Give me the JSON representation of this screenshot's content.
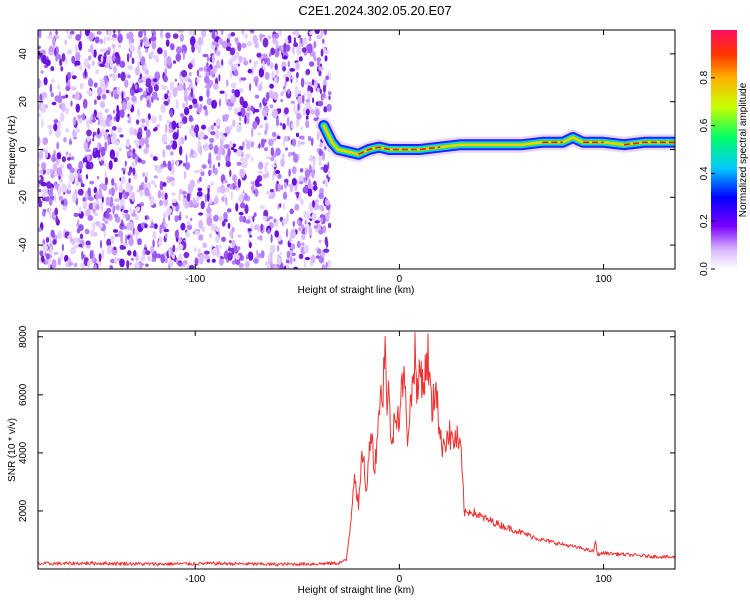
{
  "page_title": "C2E1.2024.302.05.20.E07",
  "colors": {
    "snr_line": "#ee3333",
    "scatter": "#7a2bd6",
    "axis": "#000000"
  },
  "chart_data": [
    {
      "type": "heatmap",
      "title": "C2E1.2024.302.05.20.E07",
      "xlabel": "Height of straight line (km)",
      "ylabel": "Frequency (Hz)",
      "xlim": [
        -177,
        135
      ],
      "ylim": [
        -50,
        50
      ],
      "xticks": [
        -100,
        0,
        100
      ],
      "xtick_labels": [
        "-100",
        "0",
        "100"
      ],
      "yticks": [
        40,
        20,
        0,
        -20,
        -40
      ],
      "ytick_labels": [
        "40",
        "20",
        "0",
        "-20",
        "-40"
      ],
      "noise_region_x": [
        -177,
        -37
      ],
      "ridge": {
        "x": [
          -37,
          -33,
          -30,
          -25,
          -20,
          -15,
          -10,
          -5,
          0,
          10,
          20,
          30,
          40,
          50,
          60,
          70,
          80,
          85,
          90,
          95,
          100,
          110,
          120,
          135
        ],
        "y": [
          10,
          3,
          0,
          -1,
          -2,
          0,
          1,
          0,
          0,
          0,
          1,
          2,
          2,
          2,
          2,
          3,
          3,
          5,
          3,
          3,
          3,
          2,
          3,
          3
        ]
      },
      "colorbar": {
        "label": "Normalized spectral amplitude",
        "range": [
          0.0,
          1.0
        ],
        "ticks": [
          0.0,
          0.2,
          0.4,
          0.6,
          0.8
        ],
        "tick_labels": [
          "0.0",
          "0.2",
          "0.4",
          "0.6",
          "0.8"
        ]
      }
    },
    {
      "type": "line",
      "xlabel": "Height of straight line (km)",
      "ylabel": "SNR (10 * v/v)",
      "xlim": [
        -177,
        135
      ],
      "ylim": [
        0,
        8200
      ],
      "xticks": [
        -100,
        0,
        100
      ],
      "xtick_labels": [
        "-100",
        "0",
        "100"
      ],
      "yticks": [
        2000,
        4000,
        6000,
        8000
      ],
      "ytick_labels": [
        "2000",
        "4000",
        "6000",
        "8000"
      ],
      "series": [
        {
          "name": "SNR",
          "x": [
            -177,
            -150,
            -120,
            -90,
            -60,
            -40,
            -30,
            -26,
            -24,
            -22,
            -20,
            -18,
            -16,
            -14,
            -12,
            -10,
            -8,
            -7,
            -6,
            -5,
            -4,
            -2,
            0,
            2,
            4,
            6,
            8,
            8.5,
            10,
            12,
            14,
            16,
            18,
            20,
            22,
            24,
            26,
            28,
            30,
            31,
            32,
            35,
            40,
            50,
            60,
            70,
            80,
            90,
            95,
            96,
            97,
            100,
            110,
            120,
            135
          ],
          "y": [
            180,
            200,
            170,
            190,
            160,
            180,
            200,
            300,
            1500,
            3400,
            2100,
            4100,
            2600,
            5000,
            3400,
            5600,
            6200,
            8200,
            5000,
            6600,
            4000,
            5600,
            5200,
            6800,
            4700,
            6000,
            7800,
            5600,
            7000,
            6400,
            7400,
            5300,
            6600,
            4300,
            4400,
            4700,
            4400,
            4500,
            4100,
            3000,
            1900,
            2000,
            1800,
            1500,
            1250,
            1000,
            850,
            700,
            600,
            950,
            500,
            550,
            500,
            450,
            400
          ]
        }
      ]
    }
  ]
}
